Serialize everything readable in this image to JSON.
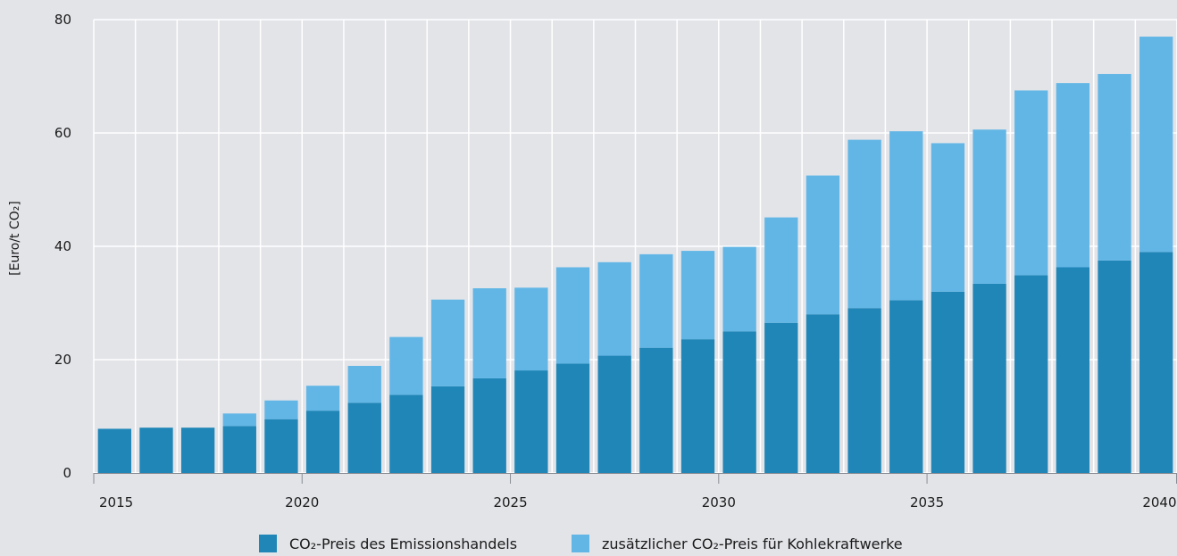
{
  "chart_data": {
    "type": "bar",
    "stacked": true,
    "grid": true,
    "legend_position": "bottom-center",
    "ylabel": "[Euro/t CO₂]",
    "ylim": [
      0,
      80
    ],
    "yticks": [
      "0",
      "20",
      "40",
      "60",
      "80"
    ],
    "xticks": [
      "2015",
      "2020",
      "2025",
      "2030",
      "2035",
      "2040"
    ],
    "categories": [
      "2015",
      "2016",
      "2017",
      "2018",
      "2019",
      "2020",
      "2021",
      "2022",
      "2023",
      "2024",
      "2025",
      "2026",
      "2027",
      "2028",
      "2029",
      "2030",
      "2031",
      "2032",
      "2033",
      "2034",
      "2035",
      "2036",
      "2037",
      "2038",
      "2039",
      "2040"
    ],
    "series": [
      {
        "name": "CO₂-Preis des Emissionshandels",
        "color": "#1f86b7",
        "values": [
          7.8,
          8.0,
          8.0,
          8.3,
          9.5,
          11.0,
          12.4,
          13.8,
          15.3,
          16.7,
          18.1,
          19.3,
          20.7,
          22.1,
          23.6,
          25.0,
          26.5,
          28.0,
          29.1,
          30.5,
          32.0,
          33.4,
          34.9,
          36.3,
          37.5,
          39.0
        ]
      },
      {
        "name": "zusätzlicher CO₂-Preis für Kohlekraftwerke",
        "color": "#62b6e6",
        "values": [
          0,
          0,
          0,
          2.2,
          3.3,
          4.4,
          6.5,
          10.2,
          15.3,
          15.9,
          14.6,
          17.0,
          16.5,
          16.5,
          15.6,
          14.9,
          18.6,
          24.5,
          29.7,
          29.8,
          26.2,
          27.2,
          32.6,
          32.5,
          32.9,
          38.0
        ]
      }
    ]
  }
}
